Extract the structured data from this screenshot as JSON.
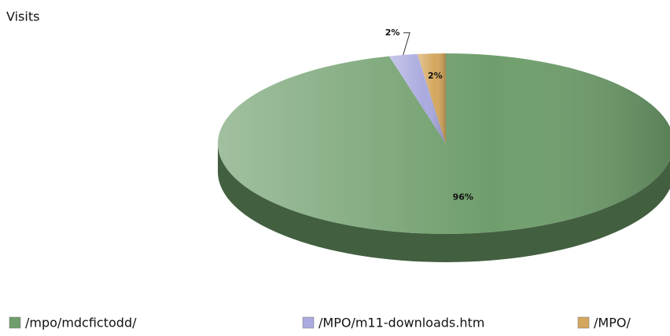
{
  "chart_data": {
    "type": "pie",
    "title": "Visits",
    "categories": [
      "/mpo/mdcfictodd/",
      "/MPO/m11-downloads.htm",
      "/MPO/"
    ],
    "values": [
      96,
      2,
      2
    ],
    "value_labels": [
      "96%",
      "2%",
      "2%"
    ],
    "colors": [
      "#6f9e6c",
      "#aaaadf",
      "#d4a75e"
    ],
    "legend": "bottom"
  }
}
